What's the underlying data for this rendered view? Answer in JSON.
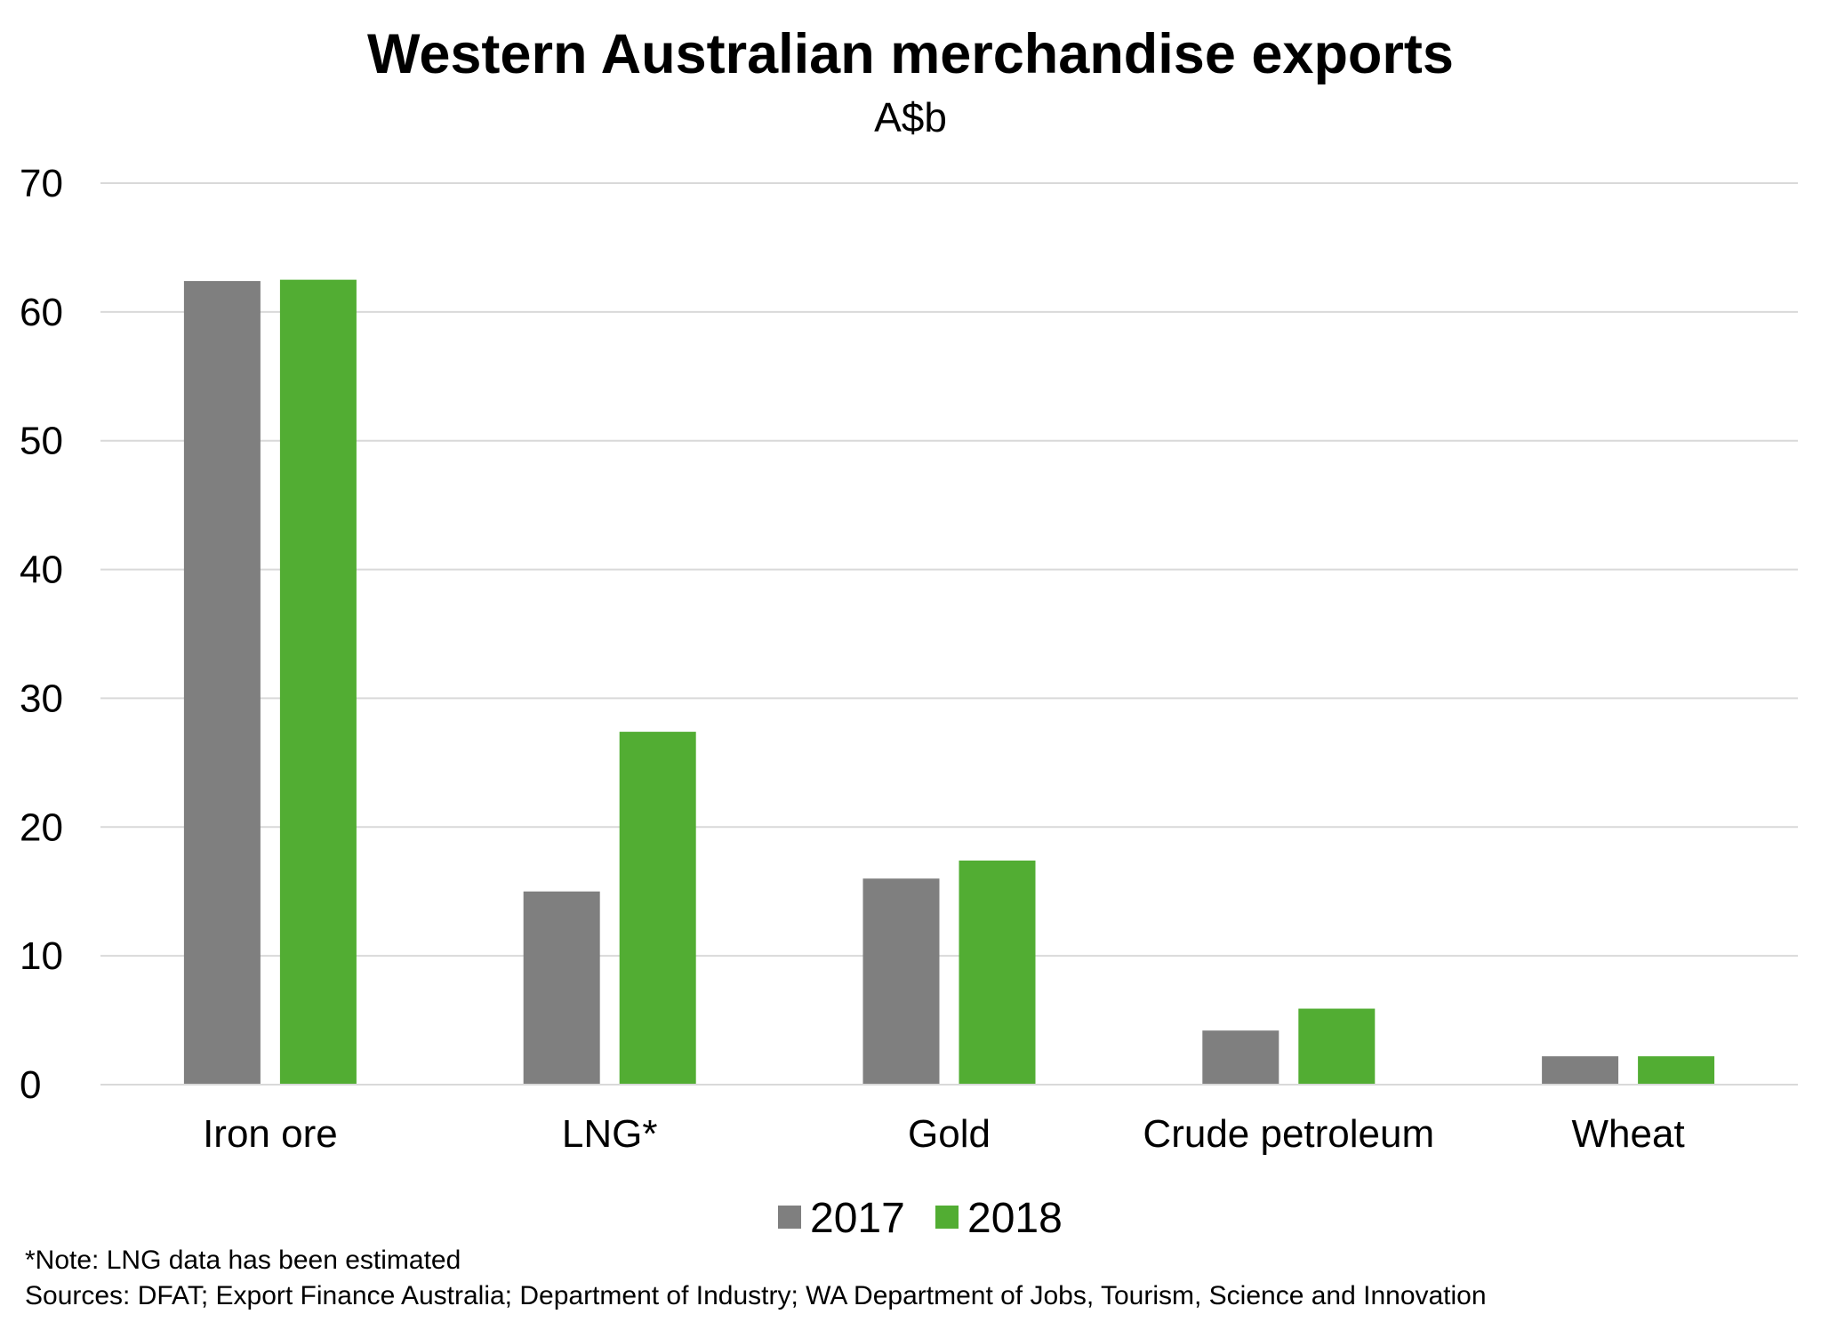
{
  "chart_data": {
    "type": "bar",
    "title": "Western Australian merchandise exports",
    "subtitle": "A$b",
    "categories": [
      "Iron ore",
      "LNG*",
      "Gold",
      "Crude petroleum",
      "Wheat"
    ],
    "series": [
      {
        "name": "2017",
        "values": [
          62.4,
          15.0,
          16.0,
          4.2,
          2.2
        ],
        "color": "#7f7f7f"
      },
      {
        "name": "2018",
        "values": [
          62.5,
          27.4,
          17.4,
          5.9,
          2.2
        ],
        "color": "#52ad33"
      }
    ],
    "ylim": [
      0,
      70
    ],
    "yticks": [
      "0",
      "10",
      "20",
      "30",
      "40",
      "50",
      "60",
      "70"
    ],
    "grid": true,
    "legend_position": "bottom",
    "colors": {
      "gridline": "#d9d9d9",
      "axis": "#d9d9d9"
    }
  },
  "notes": {
    "note": "*Note: LNG data has been estimated",
    "sources": "Sources: DFAT; Export Finance Australia; Department of Industry; WA Department of Jobs, Tourism, Science and Innovation"
  }
}
